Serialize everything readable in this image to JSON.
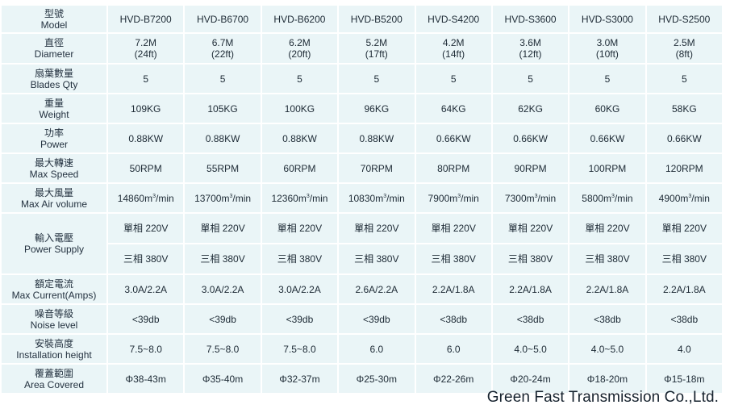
{
  "models": [
    "HVD-B7200",
    "HVD-B6700",
    "HVD-B6200",
    "HVD-B5200",
    "HVD-S4200",
    "HVD-S3600",
    "HVD-S3000",
    "HVD-S2500"
  ],
  "header": {
    "zh": "型號",
    "en": "Model"
  },
  "rows": {
    "diameter": {
      "zh": "直徑",
      "en": "Diameter",
      "values": [
        "7.2M",
        "6.7M",
        "6.2M",
        "5.2M",
        "4.2M",
        "3.6M",
        "3.0M",
        "2.5M"
      ],
      "sub": [
        "(24ft)",
        "(22ft)",
        "(20ft)",
        "(17ft)",
        "(14ft)",
        "(12ft)",
        "(10ft)",
        "(8ft)"
      ]
    },
    "blades": {
      "zh": "扇葉數量",
      "en": "Blades Qty",
      "values": [
        "5",
        "5",
        "5",
        "5",
        "5",
        "5",
        "5",
        "5"
      ]
    },
    "weight": {
      "zh": "重量",
      "en": "Weight",
      "values": [
        "109KG",
        "105KG",
        "100KG",
        "96KG",
        "64KG",
        "62KG",
        "60KG",
        "58KG"
      ]
    },
    "power": {
      "zh": "功率",
      "en": "Power",
      "values": [
        "0.88KW",
        "0.88KW",
        "0.88KW",
        "0.88KW",
        "0.66KW",
        "0.66KW",
        "0.66KW",
        "0.66KW"
      ]
    },
    "speed": {
      "zh": "最大轉速",
      "en": "Max Speed",
      "values": [
        "50RPM",
        "55RPM",
        "60RPM",
        "70RPM",
        "80RPM",
        "90RPM",
        "100RPM",
        "120RPM"
      ]
    },
    "air": {
      "zh": "最大風量",
      "en": "Max Air volume",
      "values": [
        "14860",
        "13700",
        "12360",
        "10830",
        "7900",
        "7300",
        "5800",
        "4900"
      ],
      "unit": "m",
      "unit_sup": "3",
      "unit_tail": "/min"
    },
    "supply": {
      "zh": "輸入電壓",
      "en": "Power Supply",
      "single": [
        "單相 220V",
        "單相 220V",
        "單相 220V",
        "單相 220V",
        "單相 220V",
        "單相 220V",
        "單相 220V",
        "單相 220V"
      ],
      "three": [
        "三相 380V",
        "三相 380V",
        "三相 380V",
        "三相 380V",
        "三相 380V",
        "三相 380V",
        "三相 380V",
        "三相 380V"
      ]
    },
    "current": {
      "zh": "額定電流",
      "en": "Max Current(Amps)",
      "values": [
        "3.0A/2.2A",
        "3.0A/2.2A",
        "3.0A/2.2A",
        "2.6A/2.2A",
        "2.2A/1.8A",
        "2.2A/1.8A",
        "2.2A/1.8A",
        "2.2A/1.8A"
      ]
    },
    "noise": {
      "zh": "噪音等級",
      "en": "Noise level",
      "values": [
        "<39db",
        "<39db",
        "<39db",
        "<39db",
        "<38db",
        "<38db",
        "<38db",
        "<38db"
      ]
    },
    "height": {
      "zh": "安裝高度",
      "en": "Installation height",
      "values": [
        "7.5~8.0",
        "7.5~8.0",
        "7.5~8.0",
        "6.0",
        "6.0",
        "4.0~5.0",
        "4.0~5.0",
        "4.0"
      ]
    },
    "area": {
      "zh": "覆蓋範圍",
      "en": "Area Covered",
      "values": [
        "Φ38-43m",
        "Φ35-40m",
        "Φ32-37m",
        "Φ25-30m",
        "Φ22-26m",
        "Φ20-24m",
        "Φ18-20m",
        "Φ15-18m"
      ]
    }
  },
  "company": "Green Fast Transmission Co.,Ltd.",
  "colors": {
    "cell_bg": "#eaf5f7",
    "text": "#1d2a35"
  }
}
